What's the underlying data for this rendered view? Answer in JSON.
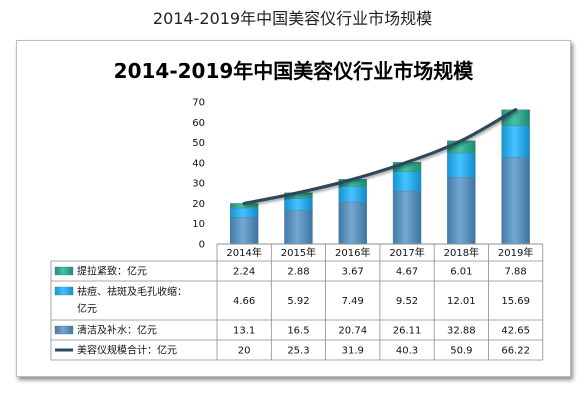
{
  "caption": "2014-2019年中国美容仪行业市场规模",
  "chart_data": {
    "type": "bar",
    "stacked": true,
    "title": "2014-2019年中国美容仪行业市场规模",
    "categories": [
      "2014年",
      "2015年",
      "2016年",
      "2017年",
      "2018年",
      "2019年"
    ],
    "ylim": [
      0,
      70
    ],
    "yticks": [
      0,
      10,
      20,
      30,
      40,
      50,
      60,
      70
    ],
    "grid": false,
    "legend": "data table below chart",
    "series": [
      {
        "name": "提拉紧致：亿元",
        "kind": "bar",
        "color": "#2aa58a",
        "values": [
          2.24,
          2.88,
          3.67,
          4.67,
          6.01,
          7.88
        ]
      },
      {
        "name": "祛痘、祛斑及毛孔收缩：亿元",
        "kind": "bar",
        "color": "#1ea9f0",
        "values": [
          4.66,
          5.92,
          7.49,
          9.52,
          12.01,
          15.69
        ]
      },
      {
        "name": "清洁及补水：亿元",
        "kind": "bar",
        "color": "#4f8cbd",
        "values": [
          13.1,
          16.5,
          20.74,
          26.11,
          32.88,
          42.65
        ]
      },
      {
        "name": "美容仪规模合计：亿元",
        "kind": "line",
        "color": "#2c4a5c",
        "values": [
          20,
          25.3,
          31.9,
          40.3,
          50.9,
          66.22
        ]
      }
    ],
    "table_rows": [
      {
        "label": [
          "提拉紧致：亿元"
        ],
        "series": 0,
        "cells": [
          "2.24",
          "2.88",
          "3.67",
          "4.67",
          "6.01",
          "7.88"
        ]
      },
      {
        "label": [
          "祛痘、祛斑及毛孔收缩：",
          "亿元"
        ],
        "series": 1,
        "cells": [
          "4.66",
          "5.92",
          "7.49",
          "9.52",
          "12.01",
          "15.69"
        ]
      },
      {
        "label": [
          "清洁及补水：亿元"
        ],
        "series": 2,
        "cells": [
          "13.1",
          "16.5",
          "20.74",
          "26.11",
          "32.88",
          "42.65"
        ]
      },
      {
        "label": [
          "美容仪规模合计：亿元"
        ],
        "series": 3,
        "cells": [
          "20",
          "25.3",
          "31.9",
          "40.3",
          "50.9",
          "66.22"
        ]
      }
    ]
  }
}
